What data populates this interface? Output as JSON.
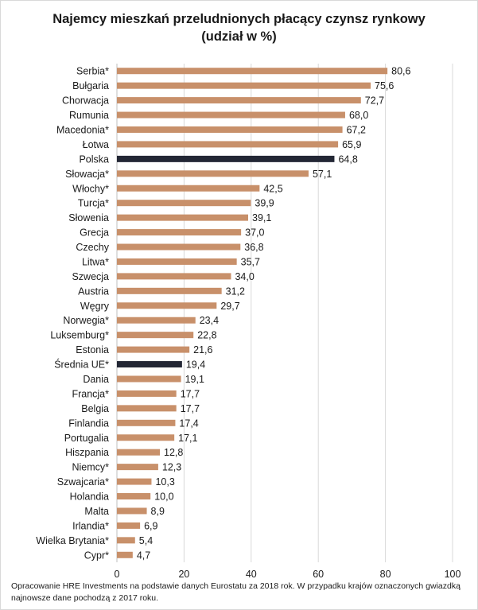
{
  "chart_data": {
    "type": "bar",
    "orientation": "horizontal",
    "title_line1": "Najemcy mieszkań przeludnionych płacący czynsz rynkowy",
    "title_line2": "(udział w %)",
    "categories": [
      "Serbia*",
      "Bułgaria",
      "Chorwacja",
      "Rumunia",
      "Macedonia*",
      "Łotwa",
      "Polska",
      "Słowacja*",
      "Włochy*",
      "Turcja*",
      "Słowenia",
      "Grecja",
      "Czechy",
      "Litwa*",
      "Szwecja",
      "Austria",
      "Węgry",
      "Norwegia*",
      "Luksemburg*",
      "Estonia",
      "Średnia UE*",
      "Dania",
      "Francja*",
      "Belgia",
      "Finlandia",
      "Portugalia",
      "Hiszpania",
      "Niemcy*",
      "Szwajcaria*",
      "Holandia",
      "Malta",
      "Irlandia*",
      "Wielka Brytania*",
      "Cypr*"
    ],
    "values": [
      80.6,
      75.6,
      72.7,
      68.0,
      67.2,
      65.9,
      64.8,
      57.1,
      42.5,
      39.9,
      39.1,
      37.0,
      36.8,
      35.7,
      34.0,
      31.2,
      29.7,
      23.4,
      22.8,
      21.6,
      19.4,
      19.1,
      17.7,
      17.7,
      17.4,
      17.1,
      12.8,
      12.3,
      10.3,
      10.0,
      8.9,
      6.9,
      5.4,
      4.7
    ],
    "value_labels": [
      "80,6",
      "75,6",
      "72,7",
      "68,0",
      "67,2",
      "65,9",
      "64,8",
      "57,1",
      "42,5",
      "39,9",
      "39,1",
      "37,0",
      "36,8",
      "35,7",
      "34,0",
      "31,2",
      "29,7",
      "23,4",
      "22,8",
      "21,6",
      "19,4",
      "19,1",
      "17,7",
      "17,7",
      "17,4",
      "17,1",
      "12,8",
      "12,3",
      "10,3",
      "10,0",
      "8,9",
      "6,9",
      "5,4",
      "4,7"
    ],
    "highlighted": [
      "Polska",
      "Średnia UE*"
    ],
    "xlim": [
      0,
      100
    ],
    "xticks": [
      0,
      20,
      40,
      60,
      80,
      100
    ],
    "xtick_labels": [
      "0",
      "20",
      "40",
      "60",
      "80",
      "100"
    ],
    "grid": "vertical",
    "legend": "none",
    "bar_color": "#c8906a",
    "highlight_color": "#232735",
    "grid_color": "#d9d9d9"
  },
  "footnote": "Opracowanie HRE Investments na podstawie danych Eurostatu za 2018 rok. W przypadku krajów oznaczonych gwiazdką najnowsze dane pochodzą z 2017 roku."
}
